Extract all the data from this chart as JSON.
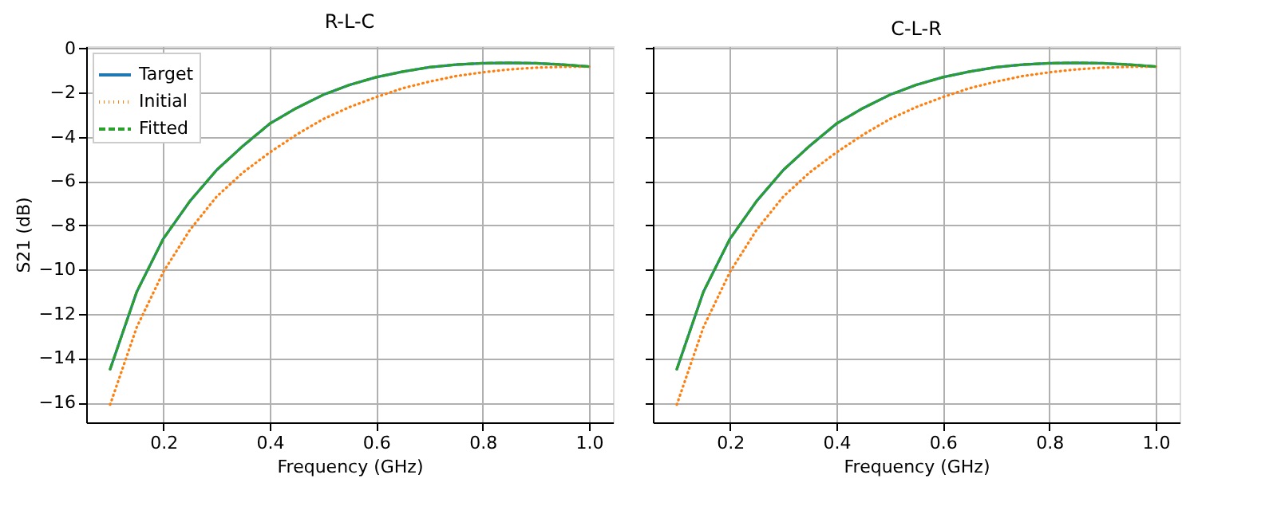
{
  "chart_data": [
    {
      "type": "line",
      "title": "R-L-C",
      "xlabel": "Frequency (GHz)",
      "ylabel": "S21 (dB)",
      "x": [
        0.1,
        0.15,
        0.2,
        0.25,
        0.3,
        0.35,
        0.4,
        0.45,
        0.5,
        0.55,
        0.6,
        0.65,
        0.7,
        0.75,
        0.8,
        0.85,
        0.9,
        0.95,
        1.0
      ],
      "series": [
        {
          "name": "Target",
          "color": "#1f77b4",
          "line_style": "solid",
          "values": [
            -14.5,
            -11.0,
            -8.6,
            -6.9,
            -5.5,
            -4.4,
            -3.4,
            -2.7,
            -2.1,
            -1.65,
            -1.3,
            -1.05,
            -0.85,
            -0.73,
            -0.67,
            -0.65,
            -0.67,
            -0.73,
            -0.82
          ]
        },
        {
          "name": "Initial",
          "color": "#ff7f0e",
          "line_style": "dotted",
          "values": [
            -16.1,
            -12.6,
            -10.1,
            -8.2,
            -6.7,
            -5.6,
            -4.7,
            -3.9,
            -3.2,
            -2.65,
            -2.2,
            -1.8,
            -1.5,
            -1.25,
            -1.08,
            -0.95,
            -0.87,
            -0.83,
            -0.82
          ]
        },
        {
          "name": "Fitted",
          "color": "#2ca02c",
          "line_style": "dashed",
          "values": [
            -14.5,
            -11.0,
            -8.6,
            -6.9,
            -5.5,
            -4.4,
            -3.4,
            -2.7,
            -2.1,
            -1.65,
            -1.3,
            -1.05,
            -0.85,
            -0.73,
            -0.67,
            -0.65,
            -0.67,
            -0.73,
            -0.82
          ]
        }
      ],
      "xlim": [
        0.055,
        1.045
      ],
      "xticks": [
        0.2,
        0.4,
        0.6,
        0.8,
        {
          "value": 1.0,
          "label": "1.0"
        }
      ],
      "ylim": [
        -16.9,
        0.1
      ],
      "yticks": [
        -16,
        -14,
        -12,
        -10,
        -8,
        -6,
        -4,
        -2,
        0
      ],
      "grid": true,
      "legend": "top left"
    },
    {
      "type": "line",
      "title": "C-L-R",
      "xlabel": "Frequency (GHz)",
      "x": [
        0.1,
        0.15,
        0.2,
        0.25,
        0.3,
        0.35,
        0.4,
        0.45,
        0.5,
        0.55,
        0.6,
        0.65,
        0.7,
        0.75,
        0.8,
        0.85,
        0.9,
        0.95,
        1.0
      ],
      "series": [
        {
          "name": "Target",
          "color": "#1f77b4",
          "line_style": "solid",
          "values": [
            -14.5,
            -11.0,
            -8.6,
            -6.9,
            -5.5,
            -4.4,
            -3.4,
            -2.7,
            -2.1,
            -1.65,
            -1.3,
            -1.05,
            -0.85,
            -0.73,
            -0.67,
            -0.65,
            -0.67,
            -0.73,
            -0.82
          ]
        },
        {
          "name": "Initial",
          "color": "#ff7f0e",
          "line_style": "dotted",
          "values": [
            -16.1,
            -12.6,
            -10.1,
            -8.2,
            -6.7,
            -5.6,
            -4.7,
            -3.9,
            -3.2,
            -2.65,
            -2.2,
            -1.8,
            -1.5,
            -1.25,
            -1.08,
            -0.95,
            -0.87,
            -0.83,
            -0.82
          ]
        },
        {
          "name": "Fitted",
          "color": "#2ca02c",
          "line_style": "dashed",
          "values": [
            -14.5,
            -11.0,
            -8.6,
            -6.9,
            -5.5,
            -4.4,
            -3.4,
            -2.7,
            -2.1,
            -1.65,
            -1.3,
            -1.05,
            -0.85,
            -0.73,
            -0.67,
            -0.65,
            -0.67,
            -0.73,
            -0.82
          ]
        }
      ],
      "xlim": [
        0.055,
        1.045
      ],
      "xticks": [
        0.2,
        0.4,
        0.6,
        0.8,
        {
          "value": 1.0,
          "label": "1.0"
        }
      ],
      "ylim": [
        -16.9,
        0.1
      ],
      "yticks": [
        -16,
        -14,
        -12,
        -10,
        -8,
        -6,
        -4,
        -2,
        0
      ],
      "grid": true,
      "legend": false,
      "tick_labels": "x"
    }
  ]
}
